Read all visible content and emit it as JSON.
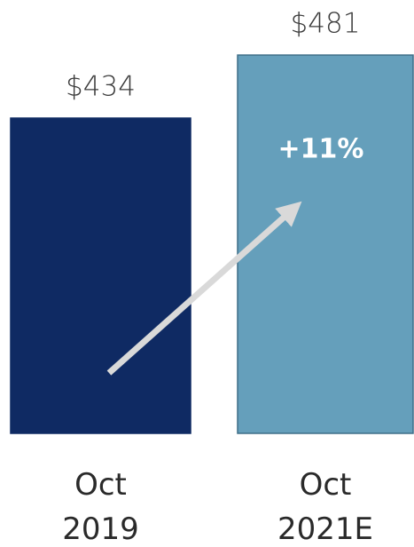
{
  "chart_data": {
    "type": "bar",
    "categories": [
      "Oct 2019",
      "Oct 2021E"
    ],
    "values": [
      434,
      481
    ],
    "value_labels": [
      "$434",
      "$481"
    ],
    "colors": [
      "#0f2a63",
      "#659fbb"
    ],
    "ylim": [
      199,
      481
    ],
    "annotation": "+11%",
    "arrow_color": "#d9d9d9"
  }
}
